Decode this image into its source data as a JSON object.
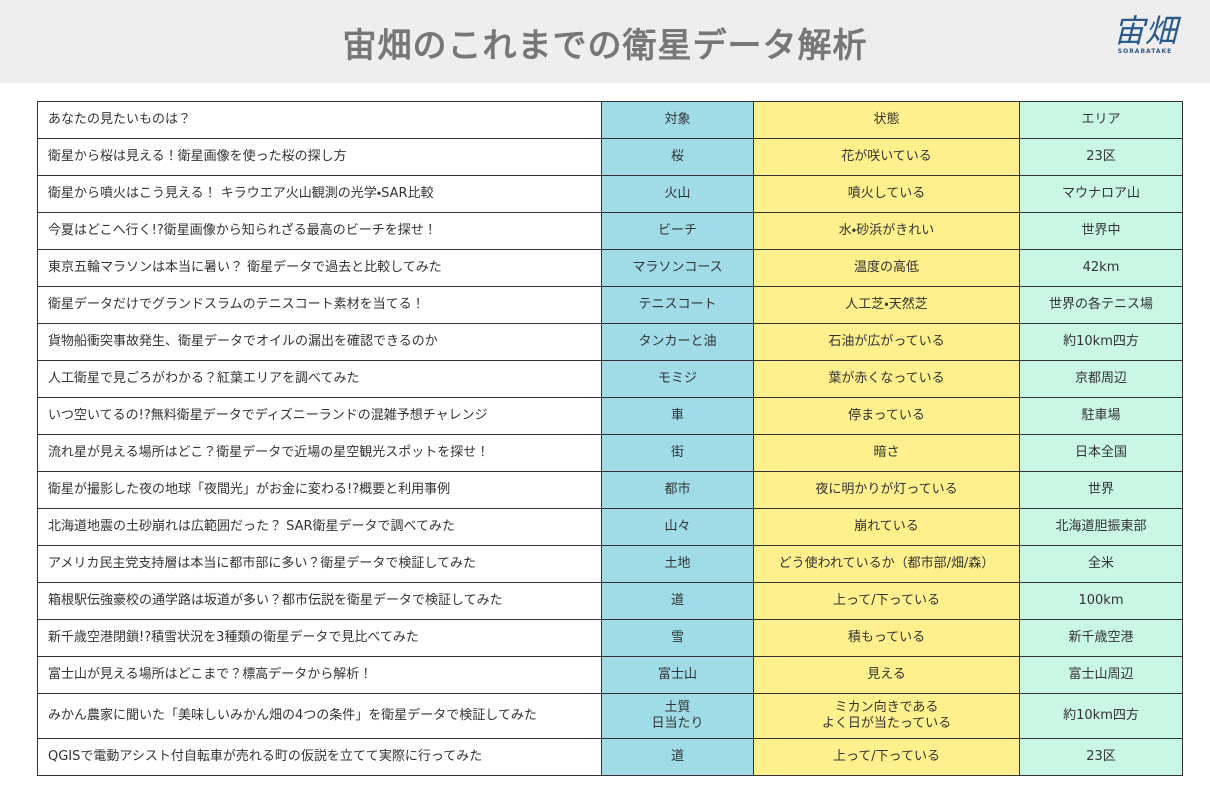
{
  "header": {
    "title": "宙畑のこれまでの衛星データ解析",
    "logo": {
      "text": "宙畑",
      "subtitle": "SORABATAKE"
    }
  },
  "table": {
    "columns": [
      "あなたの見たいものは？",
      "対象",
      "状態",
      "エリア"
    ],
    "rows": [
      [
        "衛星から桜は見える！衛星画像を使った桜の探し方",
        "桜",
        "花が咲いている",
        "23区"
      ],
      [
        "衛星から噴火はこう見える！ キラウエア火山観測の光学・SAR比較",
        "火山",
        "噴火している",
        "マウナロア山"
      ],
      [
        "今夏はどこへ行く!?衛星画像から知られざる最高のビーチを探せ！",
        "ビーチ",
        "水・砂浜がきれい",
        "世界中"
      ],
      [
        "東京五輪マラソンは本当に暑い？ 衛星データで過去と比較してみた",
        "マラソンコース",
        "温度の高低",
        "42km"
      ],
      [
        "衛星データだけでグランドスラムのテニスコート素材を当てる！",
        "テニスコート",
        "人工芝・天然芝",
        "世界の各テニス場"
      ],
      [
        "貨物船衝突事故発生、衛星データでオイルの漏出を確認できるのか",
        "タンカーと油",
        "石油が広がっている",
        "約10km四方"
      ],
      [
        "人工衛星で見ごろがわかる？紅葉エリアを調べてみた",
        "モミジ",
        "葉が赤くなっている",
        "京都周辺"
      ],
      [
        "いつ空いてるの!?無料衛星データでディズニーランドの混雑予想チャレンジ",
        "車",
        "停まっている",
        "駐車場"
      ],
      [
        "流れ星が見える場所はどこ？衛星データで近場の星空観光スポットを探せ！",
        "街",
        "暗さ",
        "日本全国"
      ],
      [
        "衛星が撮影した夜の地球「夜間光」がお金に変わる!?概要と利用事例",
        "都市",
        "夜に明かりが灯っている",
        "世界"
      ],
      [
        "北海道地震の土砂崩れは広範囲だった？ SAR衛星データで調べてみた",
        "山々",
        "崩れている",
        "北海道胆振東部"
      ],
      [
        "アメリカ民主党支持層は本当に都市部に多い？衛星データで検証してみた",
        "土地",
        "どう使われているか（都市部/畑/森）",
        "全米"
      ],
      [
        "箱根駅伝強豪校の通学路は坂道が多い？都市伝説を衛星データで検証してみた",
        "道",
        "上って/下っている",
        "100km"
      ],
      [
        "新千歳空港閉鎖!?積雪状況を3種類の衛星データで見比べてみた",
        "雪",
        "積もっている",
        "新千歳空港"
      ],
      [
        "富士山が見える場所はどこまで？標高データから解析！",
        "富士山",
        "見える",
        "富士山周辺"
      ],
      [
        "みかん農家に聞いた「美味しいみかん畑の4つの条件」を衛星データで検証してみた",
        "土質\n日当たり",
        "ミカン向きである\nよく日が当たっている",
        "約10km四方"
      ],
      [
        "QGISで電動アシスト付自転車が売れる町の仮説を立てて実際に行ってみた",
        "道",
        "上って/下っている",
        "23区"
      ]
    ]
  }
}
